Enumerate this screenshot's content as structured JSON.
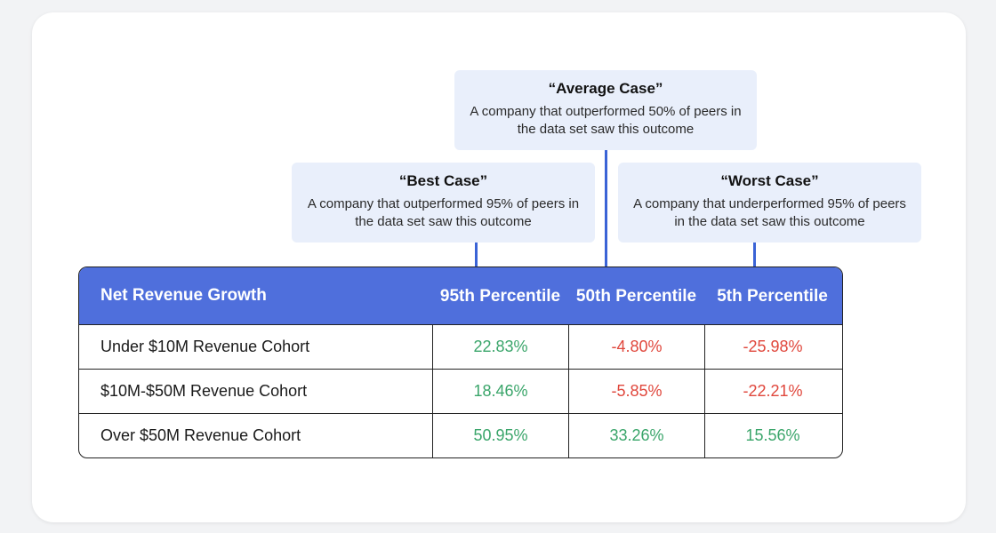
{
  "callouts": {
    "average": {
      "title": "“Average Case”",
      "desc": "A company that outperformed 50% of peers in the data set saw this outcome"
    },
    "best": {
      "title": "“Best Case”",
      "desc": "A company that outperformed 95% of peers in the data set saw this outcome"
    },
    "worst": {
      "title": "“Worst Case”",
      "desc": "A company that underperformed 95% of peers in the data set saw this outcome"
    }
  },
  "table": {
    "headers": [
      "Net Revenue Growth",
      "95th Percentile",
      "50th Percentile",
      "5th Percentile"
    ],
    "rows": [
      {
        "label": "Under $10M Revenue Cohort",
        "p95": "22.83%",
        "p50": "-4.80%",
        "p5": "-25.98%"
      },
      {
        "label": "$10M-$50M Revenue Cohort",
        "p95": "18.46%",
        "p50": "-5.85%",
        "p5": "-22.21%"
      },
      {
        "label": "Over $50M Revenue Cohort",
        "p95": "50.95%",
        "p50": "33.26%",
        "p5": "15.56%"
      }
    ]
  },
  "colors": {
    "header_bg": "#4f6fdc",
    "positive": "#3aa56a",
    "negative": "#e0473c",
    "callout_bg": "#e9effb",
    "connector": "#3a63d6"
  }
}
